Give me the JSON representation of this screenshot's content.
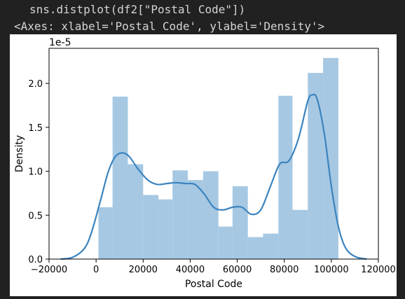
{
  "code": {
    "input": "sns.distplot(df2[\"Postal Code\"])",
    "output": "<Axes: xlabel='Postal Code', ylabel='Density'>"
  },
  "colors": {
    "background": "#212121",
    "bar_fill": "#a6c8e3",
    "line": "#3c84bf"
  },
  "chart_data": {
    "type": "bar",
    "xlabel": "Postal Code",
    "ylabel": "Density",
    "offset_text": "1e-5",
    "xlim": [
      -20000,
      120000
    ],
    "ylim": [
      0,
      2.4
    ],
    "xticks": [
      -20000,
      0,
      20000,
      40000,
      60000,
      80000,
      100000,
      120000
    ],
    "xtick_labels": [
      "−20000",
      "0",
      "20000",
      "40000",
      "60000",
      "80000",
      "100000",
      "120000"
    ],
    "yticks": [
      0.0,
      0.5,
      1.0,
      1.5,
      2.0
    ],
    "ytick_labels": [
      "0.0",
      "0.5",
      "1.0",
      "1.5",
      "2.0"
    ],
    "bins": [
      {
        "x0": 1000,
        "x1": 7000,
        "value": 0.59
      },
      {
        "x0": 7000,
        "x1": 13500,
        "value": 1.85
      },
      {
        "x0": 13500,
        "x1": 20000,
        "value": 1.08
      },
      {
        "x0": 20000,
        "x1": 26500,
        "value": 0.73
      },
      {
        "x0": 26500,
        "x1": 32500,
        "value": 0.68
      },
      {
        "x0": 32500,
        "x1": 39000,
        "value": 1.01
      },
      {
        "x0": 39000,
        "x1": 45500,
        "value": 0.9
      },
      {
        "x0": 45500,
        "x1": 52000,
        "value": 1.0
      },
      {
        "x0": 52000,
        "x1": 58000,
        "value": 0.37
      },
      {
        "x0": 58000,
        "x1": 64500,
        "value": 0.83
      },
      {
        "x0": 64500,
        "x1": 71000,
        "value": 0.25
      },
      {
        "x0": 71000,
        "x1": 77500,
        "value": 0.29
      },
      {
        "x0": 77500,
        "x1": 83500,
        "value": 1.86
      },
      {
        "x0": 83500,
        "x1": 90000,
        "value": 0.56
      },
      {
        "x0": 90000,
        "x1": 96500,
        "value": 2.12
      },
      {
        "x0": 96500,
        "x1": 103000,
        "value": 2.29
      }
    ],
    "kde": {
      "x": [
        -15000,
        -10000,
        -5000,
        -2000,
        2000,
        5000,
        8000,
        11000,
        14000,
        18000,
        22000,
        26000,
        30000,
        34000,
        38000,
        42000,
        46000,
        50000,
        54000,
        58000,
        62000,
        66000,
        70000,
        74000,
        78000,
        82000,
        86000,
        90000,
        92000,
        94000,
        97000,
        100000,
        103000,
        106000,
        110000,
        115000
      ],
      "y": [
        0.0,
        0.02,
        0.12,
        0.3,
        0.68,
        0.98,
        1.16,
        1.21,
        1.17,
        1.02,
        0.9,
        0.85,
        0.86,
        0.87,
        0.86,
        0.85,
        0.74,
        0.59,
        0.56,
        0.59,
        0.59,
        0.51,
        0.56,
        0.82,
        1.08,
        1.12,
        1.37,
        1.8,
        1.87,
        1.82,
        1.43,
        0.83,
        0.37,
        0.13,
        0.03,
        0.0
      ]
    },
    "grid": false,
    "legend": "none"
  }
}
